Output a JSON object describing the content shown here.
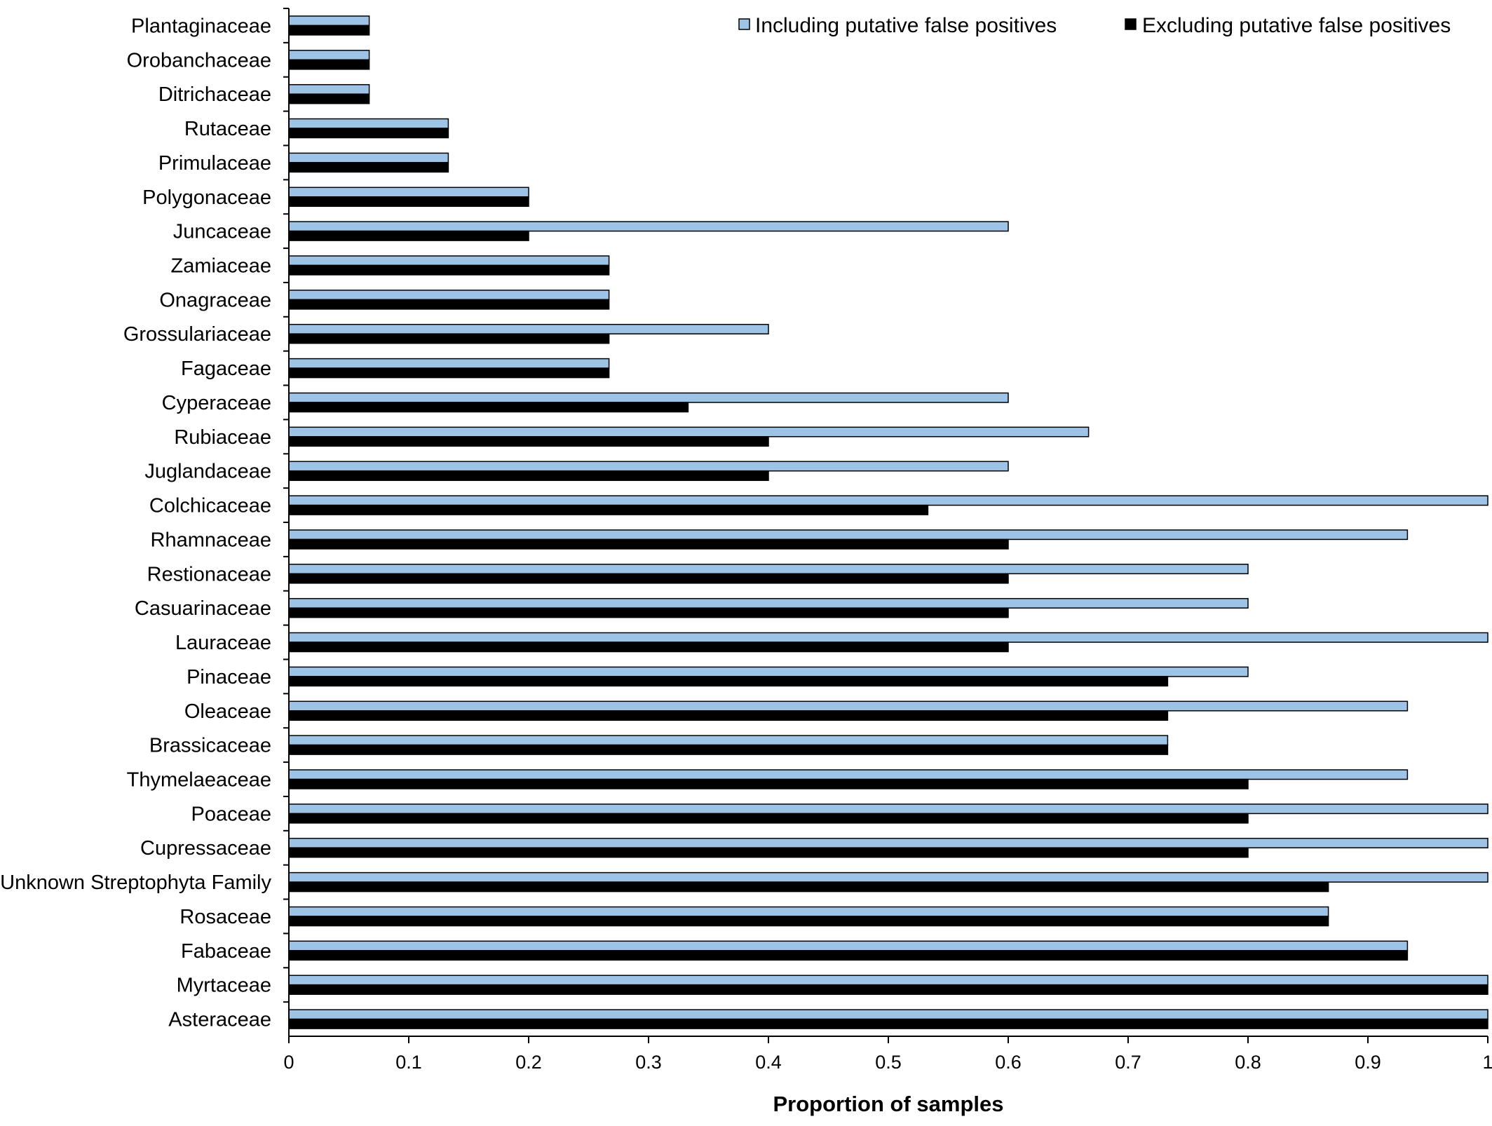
{
  "chart_data": {
    "type": "bar",
    "orientation": "horizontal",
    "title": "",
    "xlabel": "Proportion of samples",
    "ylabel": "",
    "xlim": [
      0,
      1
    ],
    "x_ticks": [
      "0",
      "0.1",
      "0.2",
      "0.3",
      "0.4",
      "0.5",
      "0.6",
      "0.7",
      "0.8",
      "0.9",
      "1"
    ],
    "grid": false,
    "legend_position": "top-right",
    "categories": [
      "Plantaginaceae",
      "Orobanchaceae",
      "Ditrichaceae",
      "Rutaceae",
      "Primulaceae",
      "Polygonaceae",
      "Juncaceae",
      "Zamiaceae",
      "Onagraceae",
      "Grossulariaceae",
      "Fagaceae",
      "Cyperaceae",
      "Rubiaceae",
      "Juglandaceae",
      "Colchicaceae",
      "Rhamnaceae",
      "Restionaceae",
      "Casuarinaceae",
      "Lauraceae",
      "Pinaceae",
      "Oleaceae",
      "Brassicaceae",
      "Thymelaeaceae",
      "Poaceae",
      "Cupressaceae",
      "Unknown Streptophyta Family",
      "Rosaceae",
      "Fabaceae",
      "Myrtaceae",
      "Asteraceae"
    ],
    "series": [
      {
        "name": "Including putative false positives",
        "color": "#9dc3e6",
        "values": [
          0.067,
          0.067,
          0.067,
          0.133,
          0.133,
          0.2,
          0.6,
          0.267,
          0.267,
          0.4,
          0.267,
          0.6,
          0.667,
          0.6,
          1.0,
          0.933,
          0.8,
          0.8,
          1.0,
          0.8,
          0.933,
          0.733,
          0.933,
          1.0,
          1.0,
          1.0,
          0.867,
          0.933,
          1.0,
          1.0
        ]
      },
      {
        "name": "Excluding putative false positives",
        "color": "#000000",
        "values": [
          0.067,
          0.067,
          0.067,
          0.133,
          0.133,
          0.2,
          0.2,
          0.267,
          0.267,
          0.267,
          0.267,
          0.333,
          0.4,
          0.4,
          0.533,
          0.6,
          0.6,
          0.6,
          0.6,
          0.733,
          0.733,
          0.733,
          0.8,
          0.8,
          0.8,
          0.867,
          0.867,
          0.933,
          1.0,
          1.0
        ]
      }
    ]
  }
}
